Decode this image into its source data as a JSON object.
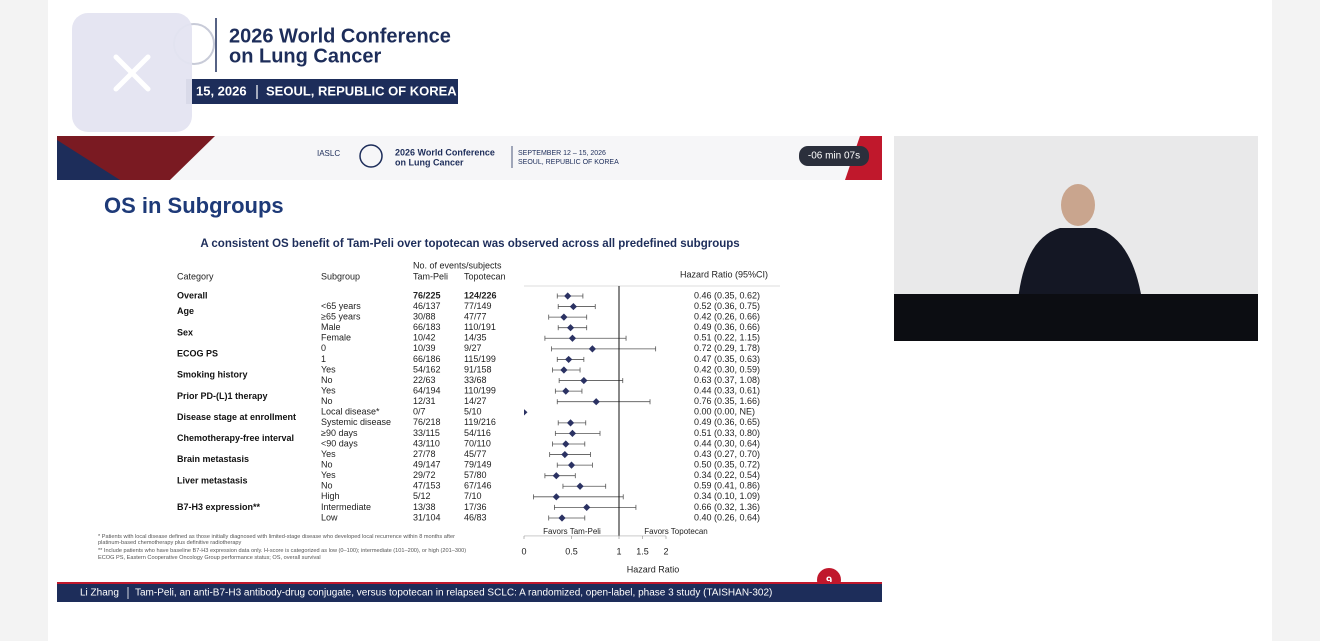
{
  "banner": {
    "title_line1": "2026 World Conference",
    "title_line2": "on Lung Cancer",
    "dates": "15, 2026",
    "location": "SEOUL, REPUBLIC OF KOREA"
  },
  "slide": {
    "header": {
      "org": "IASLC",
      "conference_line1": "2026 World Conference",
      "conference_line2": "on Lung Cancer",
      "dates": "SEPTEMBER 12 – 15, 2026",
      "location": "SEOUL, REPUBLIC OF KOREA"
    },
    "timer": "-06 min 07s",
    "title": "OS in Subgroups",
    "subtitle": "A consistent OS benefit of Tam-Peli over topotecan was observed across all predefined subgroups",
    "footnotes": [
      "* Patients with local disease defined as those initially diagnosed with limited-stage disease who developed local recurrence within 8 months after platinum-based chemotherapy plus definitive radiotherapy",
      "** Include patients who have baseline B7-H3 expression data only. H-score is categorized as low (0–100); intermediate (101–200), or high (201–300)",
      "ECOG PS, Eastern Cooperative Oncology Group performance status; OS, overall survival"
    ],
    "page_number": "9",
    "footer_author": "Li Zhang",
    "footer_citation": "Tam-Peli, an anti-B7-H3 antibody-drug conjugate, versus topotecan in relapsed SCLC: A randomized, open-label, phase 3 study (TAISHAN-302)"
  },
  "chart_data": {
    "type": "forest",
    "column_headers": {
      "category": "Category",
      "subgroup": "Subgroup",
      "events": "No. of events/subjects",
      "arm1": "Tam-Peli",
      "arm2": "Topotecan",
      "hr": "Hazard Ratio (95%CI)"
    },
    "xlabel": "Hazard Ratio",
    "favors_left": "Favors Tam-Peli",
    "favors_right": "Favors Topotecan",
    "xlim": [
      0,
      2
    ],
    "xticks": [
      0,
      0.5,
      1,
      1.5,
      2
    ],
    "reference": 1,
    "color": "#2b3263",
    "groups": [
      {
        "category": "Overall",
        "rows": [
          {
            "arm1": "76/225",
            "arm2": "124/226",
            "hr": 0.46,
            "lo": 0.35,
            "hi": 0.62,
            "label": "0.46 (0.35, 0.62)"
          }
        ]
      },
      {
        "category": "Age",
        "rows": [
          {
            "subgroup": "<65 years",
            "arm1": "46/137",
            "arm2": "77/149",
            "hr": 0.52,
            "lo": 0.36,
            "hi": 0.75,
            "label": "0.52 (0.36, 0.75)"
          },
          {
            "subgroup": "≥65 years",
            "arm1": "30/88",
            "arm2": "47/77",
            "hr": 0.42,
            "lo": 0.26,
            "hi": 0.66,
            "label": "0.42 (0.26, 0.66)"
          }
        ]
      },
      {
        "category": "Sex",
        "rows": [
          {
            "subgroup": "Male",
            "arm1": "66/183",
            "arm2": "110/191",
            "hr": 0.49,
            "lo": 0.36,
            "hi": 0.66,
            "label": "0.49 (0.36, 0.66)"
          },
          {
            "subgroup": "Female",
            "arm1": "10/42",
            "arm2": "14/35",
            "hr": 0.51,
            "lo": 0.22,
            "hi": 1.15,
            "label": "0.51 (0.22, 1.15)"
          }
        ]
      },
      {
        "category": "ECOG PS",
        "rows": [
          {
            "subgroup": "0",
            "arm1": "10/39",
            "arm2": "9/27",
            "hr": 0.72,
            "lo": 0.29,
            "hi": 1.78,
            "label": "0.72 (0.29, 1.78)"
          },
          {
            "subgroup": "1",
            "arm1": "66/186",
            "arm2": "115/199",
            "hr": 0.47,
            "lo": 0.35,
            "hi": 0.63,
            "label": "0.47 (0.35, 0.63)"
          }
        ]
      },
      {
        "category": "Smoking history",
        "rows": [
          {
            "subgroup": "Yes",
            "arm1": "54/162",
            "arm2": "91/158",
            "hr": 0.42,
            "lo": 0.3,
            "hi": 0.59,
            "label": "0.42 (0.30, 0.59)"
          },
          {
            "subgroup": "No",
            "arm1": "22/63",
            "arm2": "33/68",
            "hr": 0.63,
            "lo": 0.37,
            "hi": 1.08,
            "label": "0.63 (0.37, 1.08)"
          }
        ]
      },
      {
        "category": "Prior PD-(L)1 therapy",
        "rows": [
          {
            "subgroup": "Yes",
            "arm1": "64/194",
            "arm2": "110/199",
            "hr": 0.44,
            "lo": 0.33,
            "hi": 0.61,
            "label": "0.44 (0.33, 0.61)"
          },
          {
            "subgroup": "No",
            "arm1": "12/31",
            "arm2": "14/27",
            "hr": 0.76,
            "lo": 0.35,
            "hi": 1.66,
            "label": "0.76 (0.35, 1.66)"
          }
        ]
      },
      {
        "category": "Disease stage at enrollment",
        "rows": [
          {
            "subgroup": "Local disease*",
            "arm1": "0/7",
            "arm2": "5/10",
            "hr": 0.0,
            "lo": 0.0,
            "hi": null,
            "label": "0.00 (0.00, NE)"
          },
          {
            "subgroup": "Systemic disease",
            "arm1": "76/218",
            "arm2": "119/216",
            "hr": 0.49,
            "lo": 0.36,
            "hi": 0.65,
            "label": "0.49 (0.36, 0.65)"
          }
        ]
      },
      {
        "category": "Chemotherapy-free interval",
        "rows": [
          {
            "subgroup": "≥90 days",
            "arm1": "33/115",
            "arm2": "54/116",
            "hr": 0.51,
            "lo": 0.33,
            "hi": 0.8,
            "label": "0.51 (0.33, 0.80)"
          },
          {
            "subgroup": "<90 days",
            "arm1": "43/110",
            "arm2": "70/110",
            "hr": 0.44,
            "lo": 0.3,
            "hi": 0.64,
            "label": "0.44 (0.30, 0.64)"
          }
        ]
      },
      {
        "category": "Brain metastasis",
        "rows": [
          {
            "subgroup": "Yes",
            "arm1": "27/78",
            "arm2": "45/77",
            "hr": 0.43,
            "lo": 0.27,
            "hi": 0.7,
            "label": "0.43 (0.27, 0.70)"
          },
          {
            "subgroup": "No",
            "arm1": "49/147",
            "arm2": "79/149",
            "hr": 0.5,
            "lo": 0.35,
            "hi": 0.72,
            "label": "0.50 (0.35, 0.72)"
          }
        ]
      },
      {
        "category": "Liver metastasis",
        "rows": [
          {
            "subgroup": "Yes",
            "arm1": "29/72",
            "arm2": "57/80",
            "hr": 0.34,
            "lo": 0.22,
            "hi": 0.54,
            "label": "0.34 (0.22, 0.54)"
          },
          {
            "subgroup": "No",
            "arm1": "47/153",
            "arm2": "67/146",
            "hr": 0.59,
            "lo": 0.41,
            "hi": 0.86,
            "label": "0.59 (0.41, 0.86)"
          }
        ]
      },
      {
        "category": "B7-H3 expression**",
        "rows": [
          {
            "subgroup": "High",
            "arm1": "5/12",
            "arm2": "7/10",
            "hr": 0.34,
            "lo": 0.1,
            "hi": 1.09,
            "label": "0.34 (0.10, 1.09)"
          },
          {
            "subgroup": "Intermediate",
            "arm1": "13/38",
            "arm2": "17/36",
            "hr": 0.66,
            "lo": 0.32,
            "hi": 1.36,
            "label": "0.66 (0.32, 1.36)"
          },
          {
            "subgroup": "Low",
            "arm1": "31/104",
            "arm2": "46/83",
            "hr": 0.4,
            "lo": 0.26,
            "hi": 0.64,
            "label": "0.40 (0.26, 0.64)"
          }
        ]
      }
    ]
  }
}
